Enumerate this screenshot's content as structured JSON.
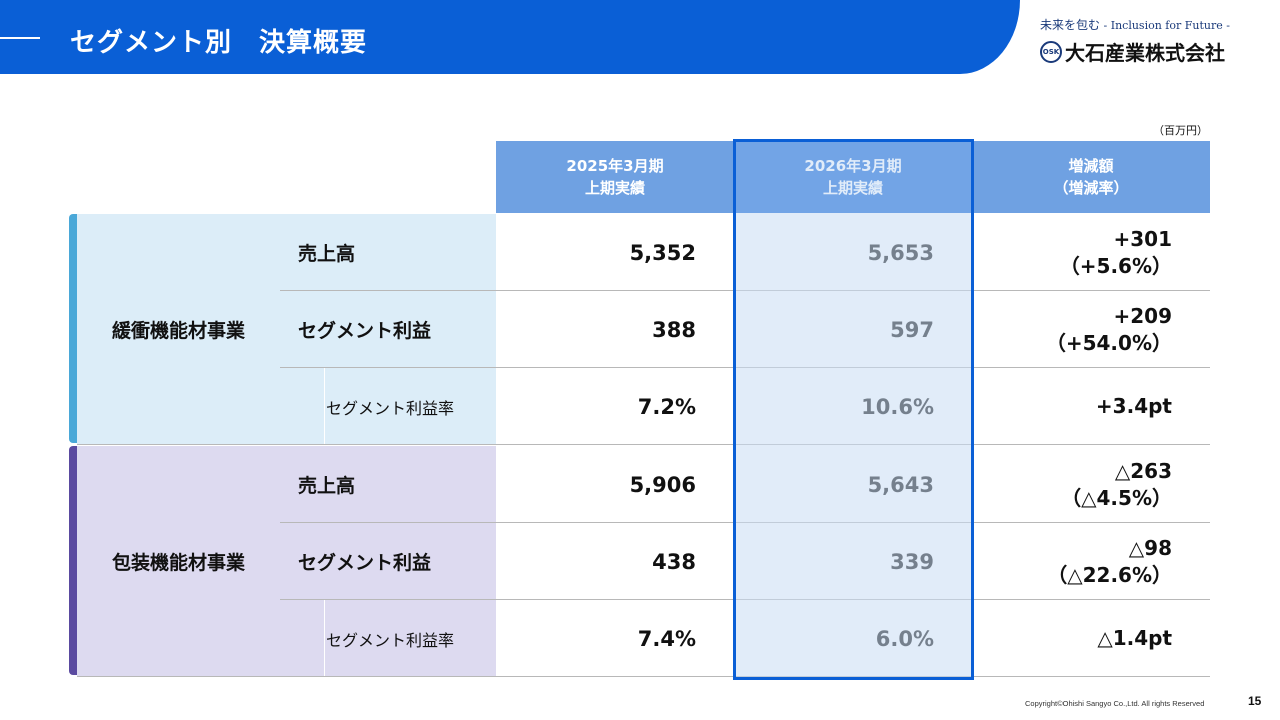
{
  "header": {
    "title": "セグメント別　決算概要"
  },
  "logo": {
    "tagline_ja": "未来を包む",
    "tagline_en": " - Inclusion for Future -",
    "seal": "OSK",
    "company": "大石産業株式会社"
  },
  "unit": "（百万円）",
  "columns": [
    {
      "line1": "2025年3月期",
      "line2": "上期実績"
    },
    {
      "line1": "2026年3月期",
      "line2": "上期実績"
    },
    {
      "line1": "増減額",
      "line2": "（増減率）"
    }
  ],
  "segments": [
    {
      "name": "緩衝機能材事業",
      "rows": [
        {
          "label": "売上高",
          "prev": "5,352",
          "curr": "5,653",
          "diff": "+301",
          "rate": "（+5.6%）"
        },
        {
          "label": "セグメント利益",
          "prev": "388",
          "curr": "597",
          "diff": "+209",
          "rate": "（+54.0%）"
        },
        {
          "label": "セグメント利益率",
          "prev": "7.2%",
          "curr": "10.6%",
          "diff": "+3.4pt",
          "rate": ""
        }
      ]
    },
    {
      "name": "包装機能材事業",
      "rows": [
        {
          "label": "売上高",
          "prev": "5,906",
          "curr": "5,643",
          "diff": "△263",
          "rate": "（△4.5%）"
        },
        {
          "label": "セグメント利益",
          "prev": "438",
          "curr": "339",
          "diff": "△98",
          "rate": "（△22.6%）"
        },
        {
          "label": "セグメント利益率",
          "prev": "7.4%",
          "curr": "6.0%",
          "diff": "△1.4pt",
          "rate": ""
        }
      ]
    }
  ],
  "colors": {
    "banner": "#0a5fd6",
    "seg1_bg": "#dcedf8",
    "seg1_bar": "#4aa8d8",
    "seg2_bg": "#dddaf0",
    "seg2_bar": "#5a4aa0",
    "hdr_light": "#6fa1e2",
    "hdr_dark": "#0a5fd6"
  },
  "footer": {
    "copyright": "Copyright©Ohishi Sangyo Co.,Ltd. All rights Reserved",
    "page": "15"
  }
}
